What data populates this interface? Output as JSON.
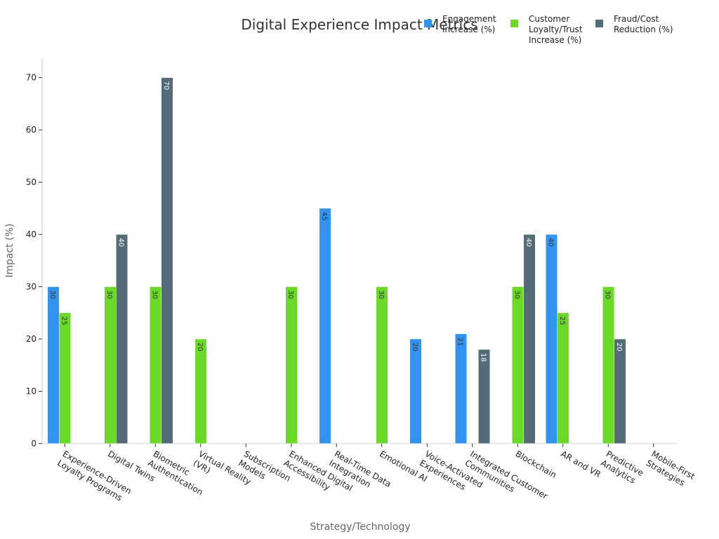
{
  "chart_data": {
    "type": "bar",
    "title": "Digital Experience Impact Metrics",
    "x_label": "Strategy/Technology",
    "y_label": "Impact (%)",
    "categories": [
      "Experience-Driven\nLoyalty Programs",
      "Digital Twins",
      "Biometric\nAuthentication",
      "Virtual Reality\n(VR)",
      "Subscription\nModels",
      "Enhanced Digital\nAccessibility",
      "Real-Time Data\nIntegration",
      "Emotional AI",
      "Voice-Activated\nExperiences",
      "Integrated Customer\nCommunities",
      "Blockchain",
      "AR and VR",
      "Predictive\nAnalytics",
      "Mobile-First\nStrategies"
    ],
    "series": [
      {
        "name": "Engagement\nIncrease (%)",
        "color": "#3293f0",
        "values": [
          30,
          null,
          null,
          null,
          null,
          null,
          45,
          null,
          20,
          21,
          null,
          40,
          null,
          null
        ]
      },
      {
        "name": "Customer\nLoyalty/Trust\nIncrease (%)",
        "color": "#6ad927",
        "values": [
          25,
          30,
          30,
          20,
          null,
          30,
          null,
          30,
          null,
          null,
          30,
          25,
          30,
          null
        ]
      },
      {
        "name": "Fraud/Cost\nReduction (%)",
        "color": "#546c78",
        "values": [
          null,
          40,
          70,
          null,
          null,
          null,
          null,
          null,
          null,
          18,
          40,
          null,
          20,
          null
        ]
      }
    ],
    "ylim": [
      0,
      73.7
    ],
    "yticks": [
      0,
      10,
      20,
      30,
      40,
      50,
      60,
      70
    ],
    "grid": false,
    "legend": "upper right",
    "value_labels_shown": true
  }
}
